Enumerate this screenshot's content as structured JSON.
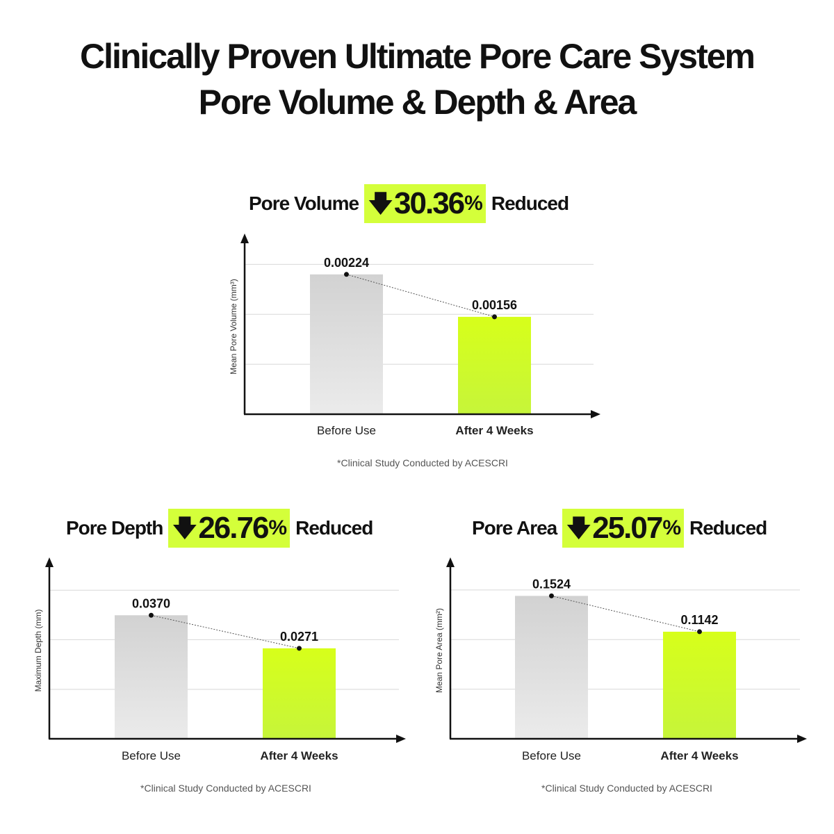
{
  "title": {
    "line1": "Clinically Proven Ultimate Pore Care System",
    "line2": "Pore Volume & Depth & Area"
  },
  "colors": {
    "accent": "#d4ff3a",
    "before_bar_top": "#d2d2d2",
    "before_bar_bottom": "#ebebeb",
    "after_bar_top": "#d7ff1a",
    "after_bar_bottom": "#c6f53a",
    "grid": "#d8d8d8",
    "axis": "#111111"
  },
  "icons": {
    "reduction_arrow": "down-arrow-icon"
  },
  "chart_data": [
    {
      "type": "bar",
      "headline": {
        "label": "Pore Volume",
        "arrow": "🡇",
        "value": "30.36",
        "unit": "%",
        "word": "Reduced"
      },
      "ylabel": "Mean Pore Volume (mm³)",
      "xlabel": "",
      "categories": [
        "Before Use",
        "After 4 Weeks"
      ],
      "values": [
        0.00224,
        0.00156
      ],
      "value_labels": [
        "0.00224",
        "0.00156"
      ],
      "ylim": [
        0,
        0.00285
      ],
      "gridlines": [
        0.0008,
        0.0016,
        0.0024
      ],
      "footnote": "*Clinical Study Conducted by ACESCRI"
    },
    {
      "type": "bar",
      "headline": {
        "label": "Pore Depth",
        "arrow": "🡇",
        "value": "26.76",
        "unit": "%",
        "word": "Reduced"
      },
      "ylabel": "Maximum Depth (mm)",
      "xlabel": "",
      "categories": [
        "Before Use",
        "After 4 Weeks"
      ],
      "values": [
        0.037,
        0.0271
      ],
      "value_labels": [
        "0.0370",
        "0.0271"
      ],
      "ylim": [
        0,
        0.0535
      ],
      "gridlines": [
        0.0148,
        0.0297,
        0.0445
      ],
      "footnote": "*Clinical Study Conducted by ACESCRI"
    },
    {
      "type": "bar",
      "headline": {
        "label": "Pore Area",
        "arrow": "🡇",
        "value": "25.07",
        "unit": "%",
        "word": "Reduced"
      },
      "ylabel": "Mean Pore Area (mm²)",
      "xlabel": "",
      "categories": [
        "Before Use",
        "After 4 Weeks"
      ],
      "values": [
        0.1524,
        0.1142
      ],
      "value_labels": [
        "0.1524",
        "0.1142"
      ],
      "ylim": [
        0,
        0.1905
      ],
      "gridlines": [
        0.0529,
        0.1058,
        0.1587
      ],
      "footnote": "*Clinical Study Conducted by ACESCRI"
    }
  ]
}
